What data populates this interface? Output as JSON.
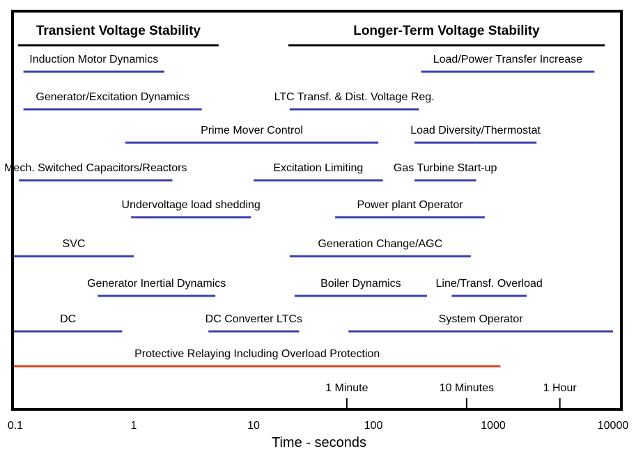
{
  "chart_data": {
    "type": "timeline",
    "x_scale": "log",
    "xlim": [
      0.1,
      10000
    ],
    "xlabel": "Time - seconds",
    "x_ticks": [
      {
        "value": 0.1,
        "label": "0.1"
      },
      {
        "value": 1,
        "label": "1"
      },
      {
        "value": 10,
        "label": "10"
      },
      {
        "value": 100,
        "label": "100"
      },
      {
        "value": 1000,
        "label": "1000"
      },
      {
        "value": 10000,
        "label": "10000"
      }
    ],
    "phases": [
      {
        "label": "Transient Voltage Stability",
        "start": 0.1,
        "end": 6
      },
      {
        "label": "Longer-Term Voltage Stability",
        "start": 18,
        "end": 10000
      }
    ],
    "time_markers": [
      {
        "label": "1 Minute",
        "value": 60
      },
      {
        "label": "10 Minutes",
        "value": 600
      },
      {
        "label": "1 Hour",
        "value": 3600
      }
    ],
    "bars": [
      {
        "label": "Induction Motor Dynamics",
        "start": 0.12,
        "end": 1.8,
        "row": 0,
        "color": "#3a3fb0"
      },
      {
        "label": "Load/Power Transfer Increase",
        "start": 250,
        "end": 7000,
        "row": 0,
        "color": "#3a3fb0"
      },
      {
        "label": "Generator/Excitation Dynamics",
        "start": 0.12,
        "end": 3.7,
        "row": 1,
        "color": "#3a3fb0"
      },
      {
        "label": "LTC Transf. & Dist. Voltage Reg.",
        "start": 20,
        "end": 240,
        "row": 1,
        "color": "#3a3fb0"
      },
      {
        "label": "Prime Mover Control",
        "start": 0.85,
        "end": 110,
        "row": 2,
        "color": "#3a3fb0"
      },
      {
        "label": "Load Diversity/Thermostat",
        "start": 220,
        "end": 2300,
        "row": 2,
        "color": "#3a3fb0"
      },
      {
        "label": "Mech. Switched Capacitors/Reactors",
        "start": 0.11,
        "end": 2.1,
        "row": 3,
        "color": "#3a3fb0"
      },
      {
        "label": "Excitation Limiting",
        "start": 10,
        "end": 120,
        "row": 3,
        "color": "#3a3fb0"
      },
      {
        "label": "Gas Turbine Start-up",
        "start": 220,
        "end": 720,
        "row": 3,
        "color": "#3a3fb0"
      },
      {
        "label": "Undervoltage load shedding",
        "start": 0.95,
        "end": 9.5,
        "row": 4,
        "color": "#3a3fb0"
      },
      {
        "label": "Power plant Operator",
        "start": 48,
        "end": 850,
        "row": 4,
        "color": "#3a3fb0"
      },
      {
        "label": "SVC",
        "start": 0.1,
        "end": 1.0,
        "row": 5,
        "color": "#3a3fb0"
      },
      {
        "label": "Generation Change/AGC",
        "start": 20,
        "end": 650,
        "row": 5,
        "color": "#3a3fb0"
      },
      {
        "label": "Generator Inertial Dynamics",
        "start": 0.5,
        "end": 4.8,
        "row": 6,
        "color": "#3a3fb0"
      },
      {
        "label": "Boiler Dynamics",
        "start": 22,
        "end": 280,
        "row": 6,
        "color": "#3a3fb0"
      },
      {
        "label": "Line/Transf. Overload",
        "start": 450,
        "end": 1900,
        "row": 6,
        "color": "#3a3fb0"
      },
      {
        "label": "DC",
        "start": 0.1,
        "end": 0.8,
        "row": 7,
        "color": "#3a3fb0"
      },
      {
        "label": "DC Converter LTCs",
        "start": 4.2,
        "end": 24,
        "row": 7,
        "color": "#3a3fb0"
      },
      {
        "label": "System Operator",
        "start": 62,
        "end": 10000,
        "row": 7,
        "color": "#3a3fb0"
      },
      {
        "label": "Protective Relaying Including Overload Protection",
        "start": 0.1,
        "end": 1150,
        "row": 8,
        "color": "#e0421e"
      }
    ]
  }
}
